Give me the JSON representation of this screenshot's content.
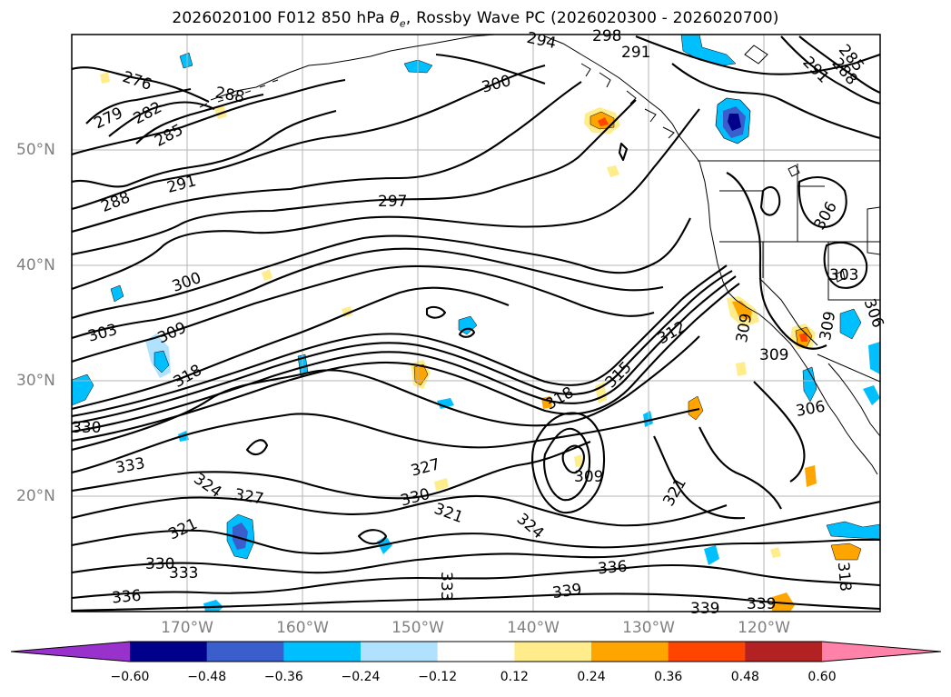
{
  "title_prefix": "2026020100 F012 850 hPa ",
  "title_theta": "θ",
  "title_theta_sub": "e",
  "title_suffix": ", Rossby Wave PC (2026020300 - 2026020700)",
  "lat_labels": [
    {
      "text": "50°N",
      "lat": 50
    },
    {
      "text": "40°N",
      "lat": 40
    },
    {
      "text": "30°N",
      "lat": 30
    },
    {
      "text": "20°N",
      "lat": 20
    }
  ],
  "lon_labels": [
    {
      "text": "170°W",
      "lon": -170
    },
    {
      "text": "160°W",
      "lon": -160
    },
    {
      "text": "150°W",
      "lon": -150
    },
    {
      "text": "140°W",
      "lon": -140
    },
    {
      "text": "130°W",
      "lon": -130
    },
    {
      "text": "120°W",
      "lon": -120
    }
  ],
  "colorbar": {
    "colors": [
      "#9932cc",
      "#00008b",
      "#3a5fcd",
      "#00bfff",
      "#b0e2ff",
      "#ffffff",
      "#ffec8b",
      "#ffa500",
      "#ff4500",
      "#b22222",
      "#ff82ab"
    ],
    "tick_labels": [
      "−0.60",
      "−0.48",
      "−0.36",
      "−0.24",
      "−0.12",
      "0.12",
      "0.24",
      "0.36",
      "0.48",
      "0.60"
    ]
  },
  "contour_labels": [
    "276",
    "279",
    "282",
    "285",
    "288",
    "288",
    "291",
    "294",
    "298",
    "291",
    "288",
    "285",
    "291",
    "300",
    "297",
    "300",
    "303",
    "306",
    "303",
    "309",
    "306",
    "309",
    "312",
    "315",
    "318",
    "318",
    "318",
    "321",
    "321",
    "321",
    "324",
    "324",
    "327",
    "327",
    "330",
    "330",
    "330",
    "333",
    "333",
    "333",
    "336",
    "336",
    "339",
    "339",
    "339",
    "306",
    "309",
    "309",
    "309"
  ]
}
